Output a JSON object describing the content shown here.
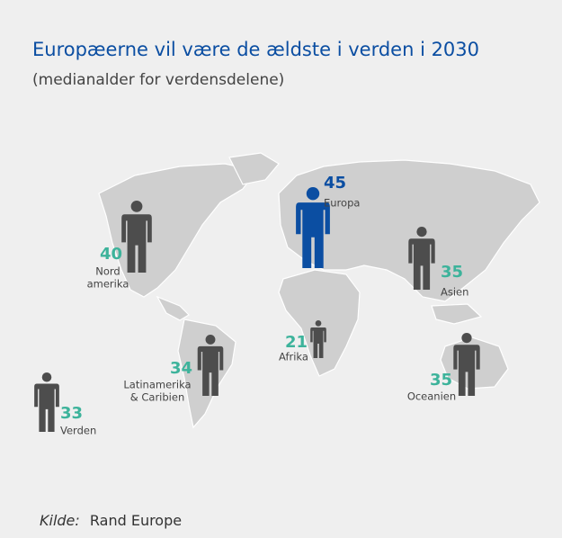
{
  "chart_data": {
    "type": "pictogram",
    "title": "Europæerne vil være de ældste i verden i 2030",
    "subtitle": "(medianalder for verdensdelene)",
    "categories": [
      [
        "Nord",
        "amerika"
      ],
      [
        "Europa"
      ],
      [
        "Asien"
      ],
      [
        "Afrika"
      ],
      [
        "Latinamerika",
        "& Caribien"
      ],
      [
        "Oceanien"
      ],
      [
        "Verden"
      ]
    ],
    "values": [
      40,
      45,
      35,
      21,
      34,
      35,
      33
    ],
    "icon_colors": [
      "#4d4d4d",
      "#0b4ea2",
      "#4d4d4d",
      "#4d4d4d",
      "#4d4d4d",
      "#4d4d4d",
      "#4d4d4d"
    ],
    "value_colors": [
      "#3db39b",
      "#0b4ea2",
      "#3db39b",
      "#3db39b",
      "#3db39b",
      "#3db39b",
      "#3db39b"
    ],
    "source": {
      "label": "Kilde:",
      "text": "Rand Europe"
    }
  }
}
